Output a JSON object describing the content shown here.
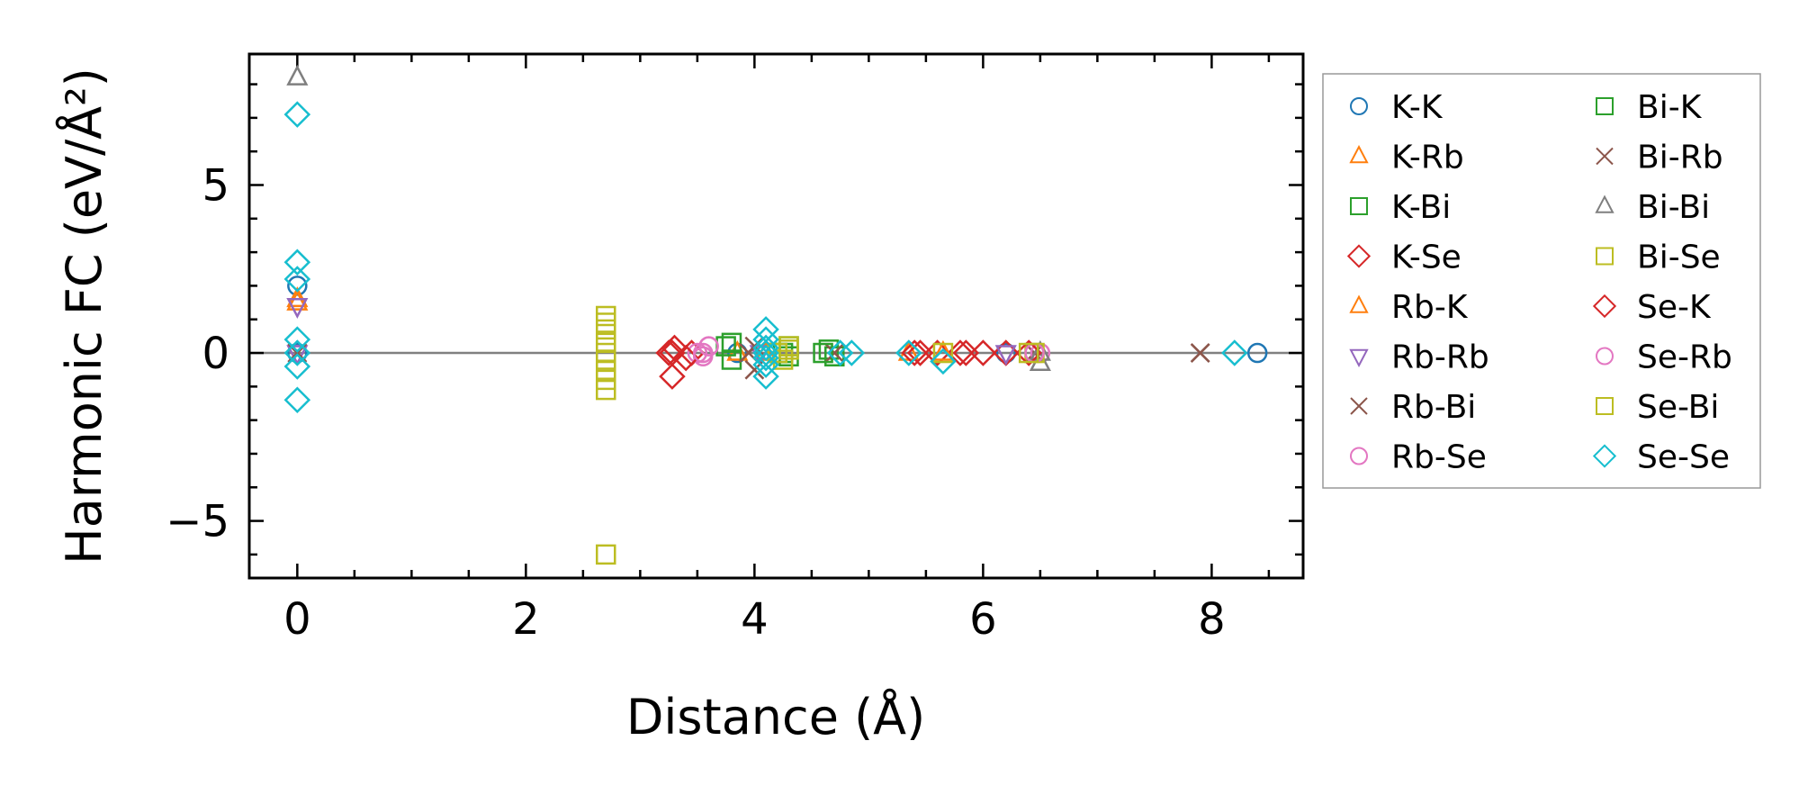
{
  "chart_data": {
    "type": "scatter",
    "xlabel": "Distance (Å)",
    "ylabel": "Harmonic FC (eV/Å²)",
    "xlim": [
      -0.42,
      8.8
    ],
    "ylim": [
      -6.7,
      8.9
    ],
    "xticks": [
      0,
      2,
      4,
      6,
      8
    ],
    "yticks": [
      -5,
      0,
      5
    ],
    "xtick_labels": [
      "0",
      "2",
      "4",
      "6",
      "8"
    ],
    "ytick_labels": [
      "−5",
      "0",
      "5"
    ],
    "x_minor_step": 0.5,
    "y_minor_step": 1,
    "zero_line": true,
    "grid": false,
    "legend_position": "outside-right",
    "series": [
      {
        "name": "K-K",
        "color": "#1f77b4",
        "marker": "circle",
        "x": [
          0,
          0,
          3.85,
          6.2,
          8.4
        ],
        "y": [
          2.0,
          0.0,
          0.0,
          0.0,
          0.0
        ]
      },
      {
        "name": "K-Rb",
        "color": "#ff7f0e",
        "marker": "triangle-up",
        "x": [
          0,
          3.85,
          5.35
        ],
        "y": [
          1.5,
          0.0,
          0.0
        ]
      },
      {
        "name": "K-Bi",
        "color": "#2ca02c",
        "marker": "square",
        "x": [
          3.8,
          3.8,
          4.25,
          4.3,
          4.65,
          4.7
        ],
        "y": [
          0.3,
          -0.2,
          0.0,
          0.2,
          0.1,
          -0.1
        ]
      },
      {
        "name": "K-Se",
        "color": "#d62728",
        "marker": "diamond",
        "x": [
          3.28,
          3.28,
          3.3,
          3.45,
          5.4,
          5.6,
          5.8,
          6.0,
          6.2
        ],
        "y": [
          -0.7,
          0.0,
          0.15,
          0.0,
          0.0,
          0.0,
          0.0,
          0.0,
          0.0
        ]
      },
      {
        "name": "Rb-K",
        "color": "#ff7f0e",
        "marker": "triangle-up",
        "x": [
          0,
          4.1,
          5.65
        ],
        "y": [
          1.6,
          0.0,
          0.0
        ]
      },
      {
        "name": "Rb-Rb",
        "color": "#9467bd",
        "marker": "triangle-down",
        "x": [
          0,
          0,
          4.05,
          6.2
        ],
        "y": [
          1.4,
          0.0,
          0.0,
          0.0
        ]
      },
      {
        "name": "Rb-Bi",
        "color": "#8c564b",
        "marker": "x",
        "x": [
          0,
          3.95,
          4.0,
          4.7,
          6.45,
          7.9
        ],
        "y": [
          0.0,
          0.0,
          -0.5,
          0.0,
          0.0,
          0.0
        ]
      },
      {
        "name": "Rb-Se",
        "color": "#e377c2",
        "marker": "circle",
        "x": [
          3.5,
          3.55,
          3.6,
          6.5
        ],
        "y": [
          0.0,
          -0.1,
          0.2,
          0.0
        ]
      },
      {
        "name": "Bi-K",
        "color": "#2ca02c",
        "marker": "square",
        "x": [
          3.75,
          4.2,
          4.3,
          4.6
        ],
        "y": [
          0.2,
          0.0,
          -0.1,
          0.0
        ]
      },
      {
        "name": "Bi-Rb",
        "color": "#8c564b",
        "marker": "x",
        "x": [
          0,
          4.0,
          7.9
        ],
        "y": [
          0.0,
          0.2,
          0.0
        ]
      },
      {
        "name": "Bi-Bi",
        "color": "#7f7f7f",
        "marker": "triangle-up",
        "x": [
          0,
          6.5,
          6.5
        ],
        "y": [
          8.2,
          0.0,
          -0.3
        ]
      },
      {
        "name": "Bi-Se",
        "color": "#bcbd22",
        "marker": "square",
        "x": [
          2.7,
          2.7,
          2.7,
          2.7,
          2.7,
          2.7,
          2.7,
          2.7,
          2.7,
          4.2,
          4.3,
          5.65,
          6.45
        ],
        "y": [
          -6.0,
          1.1,
          0.9,
          0.7,
          0.3,
          -0.2,
          -0.5,
          -0.8,
          -1.1,
          0.0,
          0.1,
          0.0,
          0.0
        ]
      },
      {
        "name": "Se-K",
        "color": "#d62728",
        "marker": "diamond",
        "x": [
          3.25,
          3.4,
          5.45,
          5.85,
          6.4
        ],
        "y": [
          0.0,
          -0.15,
          0.0,
          0.0,
          0.0
        ]
      },
      {
        "name": "Se-Rb",
        "color": "#e377c2",
        "marker": "circle",
        "x": [
          3.55,
          3.6,
          6.45
        ],
        "y": [
          0.0,
          0.2,
          0.0
        ]
      },
      {
        "name": "Se-Bi",
        "color": "#bcbd22",
        "marker": "square",
        "x": [
          2.7,
          4.25,
          4.3,
          6.4
        ],
        "y": [
          0.0,
          -0.2,
          0.2,
          0.0
        ]
      },
      {
        "name": "Se-Se",
        "color": "#17becf",
        "marker": "diamond",
        "x": [
          0,
          0,
          0,
          0,
          0,
          0,
          0,
          4.1,
          4.1,
          4.1,
          4.1,
          4.1,
          4.1,
          4.1,
          4.75,
          4.85,
          5.35,
          5.65,
          8.2
        ],
        "y": [
          7.1,
          2.7,
          2.2,
          0.4,
          0.0,
          -0.4,
          -1.4,
          0.7,
          0.4,
          0.15,
          0.0,
          -0.15,
          -0.35,
          -0.7,
          0.0,
          0.0,
          0.0,
          -0.25,
          0.0
        ]
      }
    ]
  }
}
